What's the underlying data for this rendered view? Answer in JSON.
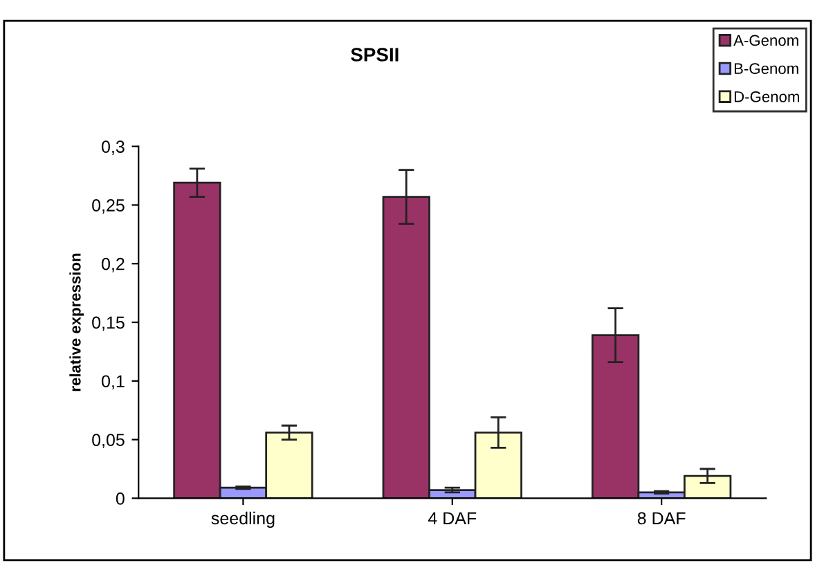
{
  "chart_data": {
    "type": "bar",
    "title": "SPSII",
    "ylabel": "relative expression",
    "categories": [
      "seedling",
      "4 DAF",
      "8 DAF"
    ],
    "series": [
      {
        "name": "A-Genom",
        "color": "#993366",
        "values": [
          0.269,
          0.257,
          0.139
        ],
        "errors": [
          0.012,
          0.023,
          0.023
        ]
      },
      {
        "name": "B-Genom",
        "color": "#9999ff",
        "values": [
          0.009,
          0.007,
          0.005
        ],
        "errors": [
          0.001,
          0.002,
          0.001
        ]
      },
      {
        "name": "D-Genom",
        "color": "#ffffcc",
        "values": [
          0.056,
          0.056,
          0.019
        ],
        "errors": [
          0.006,
          0.013,
          0.006
        ]
      }
    ],
    "ylim": [
      0,
      0.3
    ],
    "yticks": [
      0,
      {
        "value": 0.05,
        "label": "0,05"
      },
      {
        "value": 0.1,
        "label": "0,1"
      },
      {
        "value": 0.15,
        "label": "0,15"
      },
      {
        "value": 0.2,
        "label": "0,2"
      },
      {
        "value": 0.25,
        "label": "0,25"
      },
      {
        "value": 0.3,
        "label": "0,3"
      }
    ],
    "legend": "top right",
    "grid": false
  }
}
